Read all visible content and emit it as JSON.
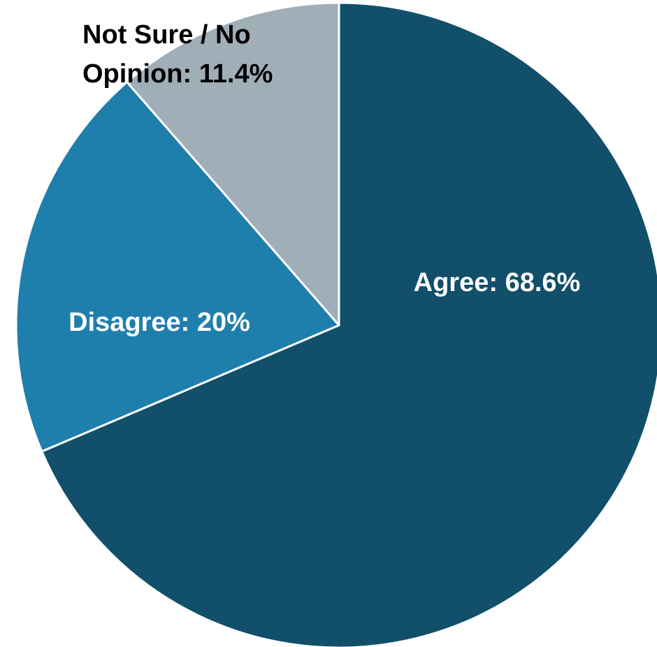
{
  "chart_data": {
    "type": "pie",
    "title": "",
    "slices": [
      {
        "label": "Agree",
        "value": 68.6,
        "label_text": "Agree: 68.6%",
        "color": "#114f6b",
        "label_color": "#ffffff"
      },
      {
        "label": "Disagree",
        "value": 20.0,
        "label_text": "Disagree: 20%",
        "color": "#1f7fac",
        "label_color": "#ffffff"
      },
      {
        "label": "Not Sure / No Opinion",
        "value": 11.4,
        "label_text_lines": [
          "Not Sure / No",
          "Opinion: 11.4%"
        ],
        "color": "#a0aeb8",
        "label_color": "#000000"
      }
    ],
    "start_angle_deg": 0,
    "direction": "clockwise",
    "legend": "none"
  }
}
